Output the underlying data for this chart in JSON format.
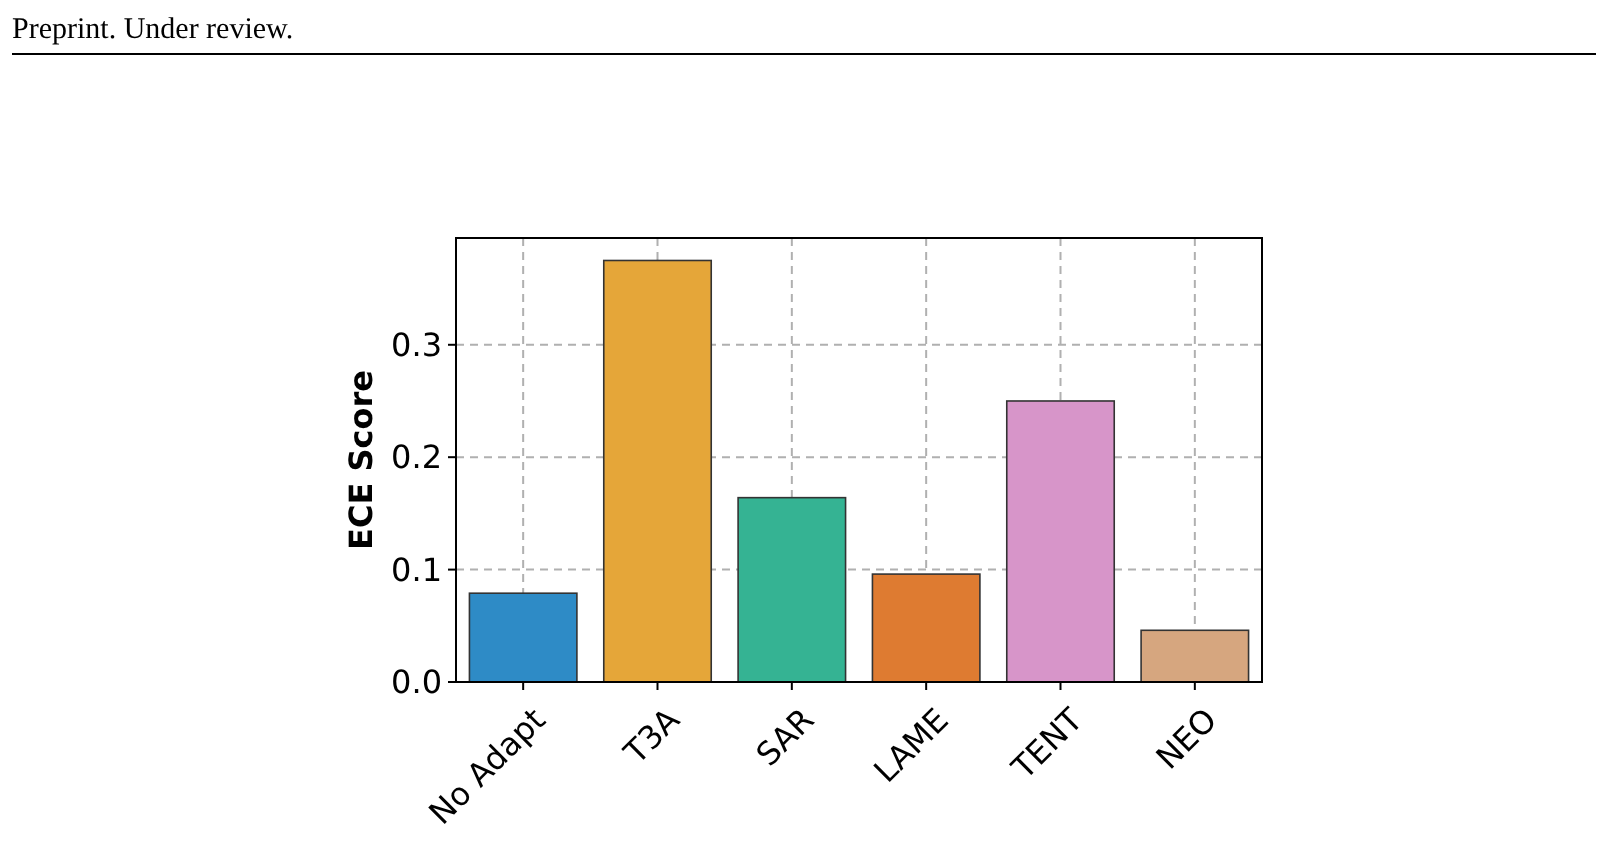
{
  "chart_data": {
    "type": "bar",
    "ylabel": "ECE Score",
    "annotations": [
      "Preprint. Under review."
    ],
    "categories": [
      "No Adapt",
      "T3A",
      "SAR",
      "LAME",
      "TENT",
      "NEO"
    ],
    "values": [
      0.079,
      0.375,
      0.164,
      0.096,
      0.25,
      0.046
    ],
    "colors": [
      "#2e8bc6",
      "#e5a639",
      "#35b393",
      "#de7b31",
      "#d795c9",
      "#d6a67f"
    ],
    "ylim": [
      0,
      0.395
    ],
    "yticks": [
      {
        "value": 0,
        "label": "0.0"
      },
      {
        "value": 0.1,
        "label": "0.1"
      },
      {
        "value": 0.2,
        "label": "0.2"
      },
      {
        "value": 0.3,
        "label": "0.3"
      }
    ],
    "grid": true
  }
}
